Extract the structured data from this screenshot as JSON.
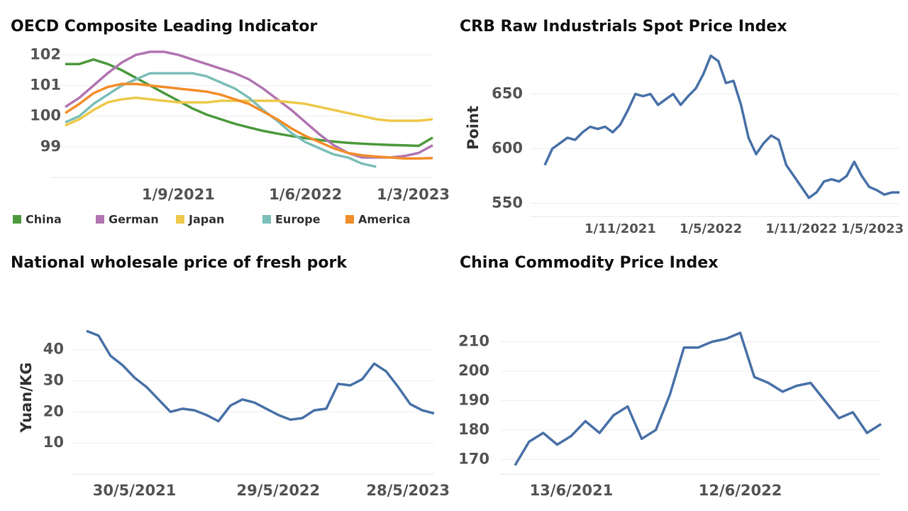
{
  "chart_data": [
    {
      "type": "line",
      "title": "OECD Composite Leading Indicator",
      "categories": [
        null,
        null,
        null,
        null,
        null,
        null,
        null,
        null,
        "1/9/2021",
        null,
        null,
        null,
        null,
        null,
        null,
        null,
        null,
        "1/6/2022",
        null,
        null,
        null,
        null,
        null,
        null,
        null,
        null,
        "1/3/2023"
      ],
      "ylim": [
        98,
        102.4
      ],
      "yticks": [
        99,
        100,
        101,
        102
      ],
      "grid": true,
      "legend": "bottom",
      "series": [
        {
          "name": "China",
          "color": "#4e9a3e",
          "values": [
            101.7,
            101.7,
            101.85,
            101.7,
            101.5,
            101.25,
            101.0,
            100.75,
            100.5,
            100.25,
            100.05,
            99.9,
            99.75,
            99.63,
            99.52,
            99.43,
            99.35,
            99.28,
            99.22,
            99.17,
            99.13,
            99.1,
            99.08,
            99.06,
            99.05,
            99.03,
            99.3
          ]
        },
        {
          "name": "German",
          "color": "#b276b2",
          "values": [
            100.3,
            100.6,
            101.0,
            101.4,
            101.75,
            102.0,
            102.1,
            102.1,
            102.0,
            101.85,
            101.7,
            101.55,
            101.4,
            101.2,
            100.9,
            100.55,
            100.2,
            99.8,
            99.4,
            99.05,
            98.8,
            98.65,
            98.65,
            98.65,
            98.7,
            98.8,
            99.05
          ]
        },
        {
          "name": "Japan",
          "color": "#efc94c",
          "values": [
            99.7,
            99.9,
            100.2,
            100.45,
            100.55,
            100.6,
            100.55,
            100.5,
            100.45,
            100.45,
            100.45,
            100.5,
            100.5,
            100.5,
            100.5,
            100.5,
            100.45,
            100.4,
            100.3,
            100.2,
            100.1,
            100.0,
            99.9,
            99.85,
            99.85,
            99.85,
            99.9
          ]
        },
        {
          "name": "Europe",
          "color": "#7cbfb9",
          "values": [
            99.8,
            100.0,
            100.4,
            100.7,
            101.0,
            101.2,
            101.4,
            101.4,
            101.4,
            101.4,
            101.3,
            101.1,
            100.9,
            100.6,
            100.2,
            99.85,
            99.45,
            99.15,
            98.95,
            98.75,
            98.65,
            98.45,
            98.35,
            null,
            null,
            null,
            null
          ]
        },
        {
          "name": "America",
          "color": "#f28e2b",
          "values": [
            100.1,
            100.4,
            100.75,
            100.95,
            101.05,
            101.05,
            101.0,
            100.95,
            100.9,
            100.85,
            100.8,
            100.7,
            100.55,
            100.4,
            100.15,
            99.9,
            99.6,
            99.35,
            99.15,
            98.95,
            98.8,
            98.72,
            98.68,
            98.65,
            98.62,
            98.62,
            98.63
          ]
        }
      ]
    },
    {
      "type": "line",
      "title": "CRB Raw Industrials Spot Price Index",
      "y_label": "Point",
      "color": "#4a72a8",
      "categories": [
        null,
        null,
        null,
        null,
        null,
        null,
        null,
        null,
        null,
        null,
        "1/11/2021",
        null,
        null,
        null,
        null,
        null,
        null,
        null,
        null,
        null,
        null,
        null,
        "1/5/2022",
        null,
        null,
        null,
        null,
        null,
        null,
        null,
        null,
        null,
        null,
        null,
        "1/11/2022",
        null,
        null,
        null,
        null,
        null,
        null,
        null,
        null,
        null,
        null,
        null,
        "1/5/2023",
        null
      ],
      "values": [
        585,
        600,
        605,
        610,
        608,
        615,
        620,
        618,
        620,
        615,
        622,
        635,
        650,
        648,
        650,
        640,
        645,
        650,
        640,
        648,
        655,
        668,
        685,
        680,
        660,
        662,
        640,
        610,
        595,
        605,
        612,
        608,
        585,
        575,
        565,
        555,
        560,
        570,
        572,
        570,
        575,
        588,
        575,
        565,
        562,
        558,
        560,
        560
      ],
      "ylim": [
        538,
        697
      ],
      "yticks": [
        550,
        600,
        650
      ],
      "grid": true
    },
    {
      "type": "line",
      "title": "National wholesale price of fresh pork",
      "y_label": "Yuan/KG",
      "color": "#4a72a8",
      "categories": [
        null,
        null,
        null,
        null,
        "30/5/2021",
        null,
        null,
        null,
        null,
        null,
        null,
        null,
        null,
        null,
        null,
        null,
        "29/5/2022",
        null,
        null,
        null,
        null,
        null,
        null,
        null,
        null,
        null,
        null,
        null,
        "28/5/2023",
        null
      ],
      "values": [
        46,
        44.5,
        38,
        35,
        31,
        28,
        24,
        20,
        21,
        20.5,
        19,
        17,
        22,
        24,
        23,
        21,
        19,
        17.5,
        18,
        20.5,
        21,
        29,
        28.5,
        30.5,
        35.5,
        33,
        28,
        22.5,
        20.5,
        19.5
      ],
      "ylim": [
        0,
        52
      ],
      "yticks": [
        10,
        20,
        30,
        40
      ],
      "grid": true
    },
    {
      "type": "line",
      "title": "China Commodity Price Index",
      "color": "#4a72a8",
      "categories": [
        null,
        null,
        null,
        null,
        "13/6/2021",
        null,
        null,
        null,
        null,
        null,
        null,
        null,
        null,
        null,
        null,
        null,
        "12/6/2022",
        null,
        null,
        null,
        null,
        null,
        null,
        null,
        null,
        null,
        null
      ],
      "values": [
        168,
        176,
        179,
        175,
        178,
        183,
        179,
        185,
        188,
        177,
        180,
        192,
        208,
        208,
        210,
        211,
        213,
        198,
        196,
        193,
        195,
        196,
        190,
        184,
        186,
        179,
        182
      ],
      "ylim": [
        165,
        220
      ],
      "yticks": [
        170,
        180,
        190,
        200,
        210
      ],
      "grid": true
    }
  ]
}
